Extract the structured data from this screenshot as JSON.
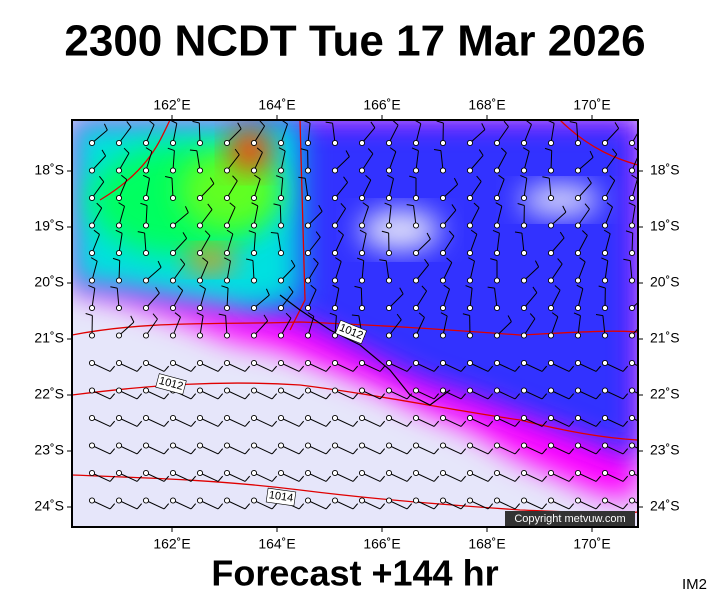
{
  "title": "2300 NCDT Tue 17 Mar 2026",
  "map": {
    "lon_labels": [
      "162˚E",
      "164˚E",
      "166˚E",
      "168˚E",
      "170˚E"
    ],
    "lat_labels": [
      "18˚S",
      "19˚S",
      "20˚S",
      "21˚S",
      "22˚S",
      "23˚S",
      "24˚S"
    ],
    "isobar_labels": [
      "1012",
      "1012",
      "1014"
    ],
    "copyright": "Copyright metvuw.com"
  },
  "footer": "Forecast +144 hr",
  "corner": "IM2"
}
